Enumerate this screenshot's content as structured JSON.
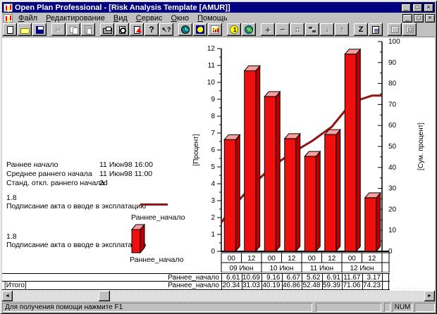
{
  "window": {
    "title": "Open Plan Professional - [Risk Analysis Template [AMUR]]",
    "controls": {
      "minimize_glyph": "_",
      "restore_glyph": "□",
      "close_glyph": "×"
    }
  },
  "menu": {
    "items": [
      "Файл",
      "Редактирование",
      "Вид",
      "Сервис",
      "Окно",
      "Помощь"
    ]
  },
  "toolbar": {
    "buttons": [
      {
        "name": "new-button",
        "icon": "new-document-icon",
        "enabled": true,
        "gap": false
      },
      {
        "name": "open-button",
        "icon": "open-folder-icon",
        "enabled": true,
        "gap": false
      },
      {
        "name": "save-button",
        "icon": "save-icon",
        "enabled": true,
        "gap": false
      },
      {
        "name": "cut-button",
        "icon": "cut-icon",
        "enabled": false,
        "gap": true
      },
      {
        "name": "copy-button",
        "icon": "copy-icon",
        "enabled": false,
        "gap": false
      },
      {
        "name": "paste-button",
        "icon": "paste-icon",
        "enabled": false,
        "gap": false
      },
      {
        "name": "print-button",
        "icon": "print-icon",
        "enabled": true,
        "gap": true
      },
      {
        "name": "print-preview-button",
        "icon": "print-preview-icon",
        "enabled": true,
        "gap": false
      },
      {
        "name": "report-button",
        "icon": "page-arrow-icon",
        "enabled": true,
        "gap": false
      },
      {
        "name": "help-button",
        "icon": "help-icon",
        "enabled": true,
        "gap": false
      },
      {
        "name": "context-help-button",
        "icon": "context-help-icon",
        "enabled": true,
        "gap": false
      },
      {
        "name": "time-analysis-button",
        "icon": "clock-icon",
        "enabled": true,
        "gap": true
      },
      {
        "name": "resource-button",
        "icon": "bird-icon",
        "enabled": true,
        "gap": false
      },
      {
        "name": "risk-analysis-button",
        "icon": "risk-chart-icon",
        "enabled": true,
        "gap": false
      },
      {
        "name": "cost-button",
        "icon": "coin-icon",
        "enabled": true,
        "gap": true
      },
      {
        "name": "percent-button",
        "icon": "percent-icon",
        "enabled": true,
        "gap": false
      },
      {
        "name": "add-button",
        "icon": "plus-icon",
        "enabled": true,
        "gap": true
      },
      {
        "name": "remove-button",
        "icon": "minus-icon",
        "enabled": true,
        "gap": false
      },
      {
        "name": "link-button",
        "icon": "link-icon",
        "enabled": true,
        "gap": false
      },
      {
        "name": "step-button",
        "icon": "step-icon",
        "enabled": true,
        "gap": false
      },
      {
        "name": "move-down-button",
        "icon": "arrow-down-icon",
        "enabled": true,
        "gap": false
      },
      {
        "name": "move-up-button",
        "icon": "arrow-up-icon",
        "enabled": true,
        "gap": false
      },
      {
        "name": "sort-button",
        "icon": "sort-z-icon",
        "enabled": true,
        "gap": true
      },
      {
        "name": "notes-button",
        "icon": "notes-icon",
        "enabled": true,
        "gap": false
      },
      {
        "name": "view-button-1",
        "icon": "grid-icon-1",
        "enabled": false,
        "gap": true
      },
      {
        "name": "view-button-2",
        "icon": "grid-icon-2",
        "enabled": false,
        "gap": false
      }
    ]
  },
  "info_panel": {
    "rows": [
      {
        "label": "Раннее начало",
        "value": "11 Июн98 16:00"
      },
      {
        "label": "Среднее раннего начала",
        "value": "11 Июн98 11:00"
      },
      {
        "label": "Станд. откл.  раннего начала",
        "value": "2d"
      }
    ]
  },
  "legend_line": {
    "risk": "1.8",
    "activity": "Подписание акта о вводе в эксплатацию",
    "series": "Раннее_начало",
    "color": "#8e1616"
  },
  "legend_bar": {
    "risk": "1.8",
    "activity": "Подписание акта о вводе в эксплатацию",
    "series": "Раннее_начало",
    "color": "#ee0f0f"
  },
  "chart_data": {
    "type": "bar",
    "categories_hours": [
      "00",
      "12",
      "00",
      "12",
      "00",
      "12",
      "00",
      "12"
    ],
    "categories_days": [
      "09 Июн",
      "10 Июн",
      "11 Июн",
      "12 Июн"
    ],
    "series": [
      {
        "name": "Раннее_начало",
        "type": "bar",
        "axis": "left",
        "values": [
          6.61,
          10.69,
          9.16,
          6.67,
          5.62,
          6.91,
          11.67,
          3.17
        ],
        "color": "#ee0f0f",
        "top_color": "#f79f9f",
        "side_color": "#b80000"
      },
      {
        "name": "Раннее_начало",
        "type": "line",
        "axis": "right",
        "values": [
          20.34,
          31.03,
          40.19,
          46.86,
          52.48,
          59.39,
          71.06,
          74.23
        ],
        "start_value": 13.73,
        "color": "#8e1616"
      }
    ],
    "left_axis": {
      "label": "[Процент]",
      "min": 0,
      "max": 12,
      "step": 1
    },
    "right_axis": {
      "label": "[Сум. процент]",
      "min": 0,
      "max": 100,
      "step": 10
    },
    "grid": false,
    "legend_position": "left"
  },
  "table": {
    "rows": [
      {
        "total_label": "",
        "series_label": "Раннее_начало",
        "values": [
          "6.61",
          "10.69",
          "9.16",
          "6.67",
          "5.62",
          "6.91",
          "11.67",
          "3.17"
        ]
      },
      {
        "total_label": "[Итого]",
        "series_label": "Раннее_начало",
        "values": [
          "20.34",
          "31.03",
          "40.19",
          "46.86",
          "52.48",
          "59.39",
          "71.06",
          "74.23"
        ]
      }
    ]
  },
  "statusbar": {
    "message": "Для получения помощи нажмите F1",
    "num": "NUM"
  }
}
